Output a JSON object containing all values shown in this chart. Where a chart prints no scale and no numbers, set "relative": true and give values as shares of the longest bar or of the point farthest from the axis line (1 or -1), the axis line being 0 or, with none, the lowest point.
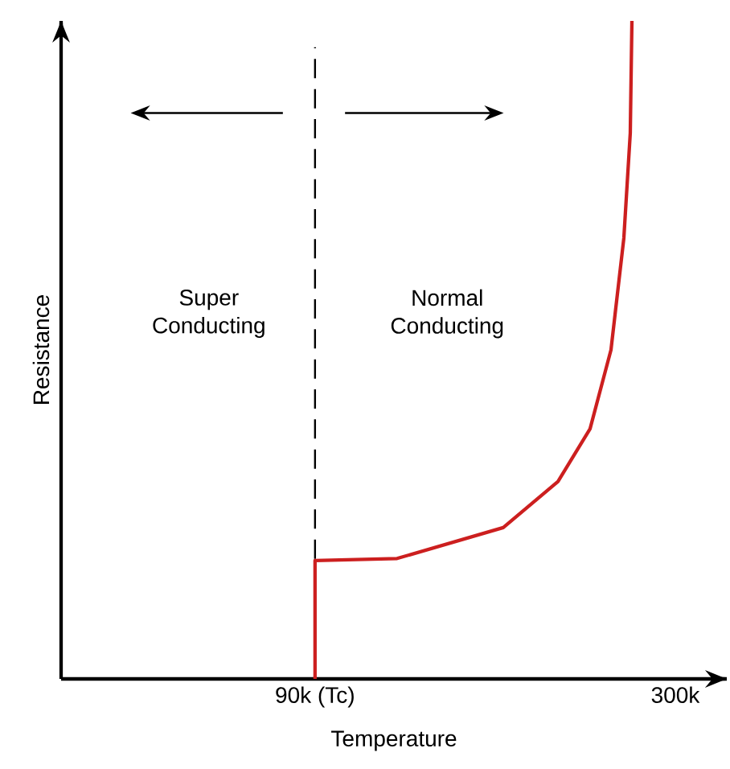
{
  "chart_data": {
    "type": "line",
    "xlabel": "Temperature",
    "ylabel": "Resistance",
    "relative": true,
    "xlim": [
      -58,
      330
    ],
    "xticks": [
      {
        "value": 90,
        "label": "90k (Tc)"
      },
      {
        "value": 300,
        "label": "300k"
      }
    ],
    "annotations": [
      "Super Conducting",
      "Normal Conducting"
    ],
    "ref_lines": [
      {
        "axis": "x",
        "value": 90,
        "color": "#000000",
        "line_style": "dashed"
      }
    ],
    "series": [
      {
        "color": "#cc1f1f",
        "x": [
          90,
          90,
          137.8,
          199.7,
          231.6,
          250.3,
          262.5,
          270,
          273.75,
          274.7
        ],
        "values": [
          0,
          0.18,
          0.183,
          0.23,
          0.3,
          0.38,
          0.5,
          0.67,
          0.83,
          1
        ]
      }
    ]
  }
}
